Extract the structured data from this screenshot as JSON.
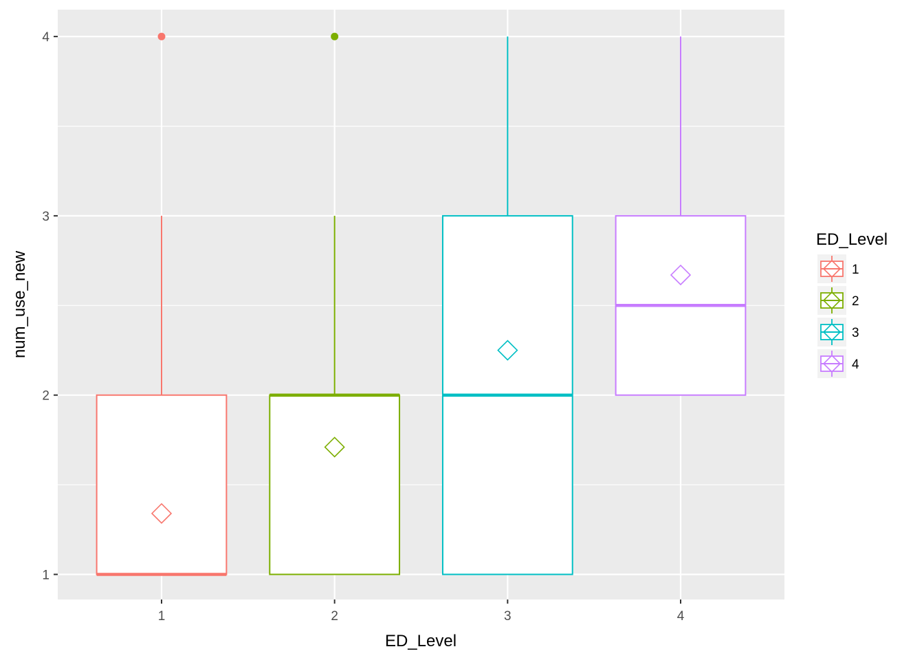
{
  "chart_data": {
    "type": "boxplot",
    "xlabel": "ED_Level",
    "ylabel": "num_use_new",
    "categories": [
      "1",
      "2",
      "3",
      "4"
    ],
    "ylim": [
      0.86,
      4.15
    ],
    "y_ticks": [
      1,
      2,
      3,
      4
    ],
    "y_minor_ticks": [
      1.5,
      2.5,
      3.5
    ],
    "grid": true,
    "legend": {
      "title": "ED_Level",
      "position": "right",
      "entries": [
        "1",
        "2",
        "3",
        "4"
      ]
    },
    "colors": [
      "#F8766D",
      "#7CAE00",
      "#00BFC4",
      "#C77CFF"
    ],
    "boxes": [
      {
        "category": "1",
        "min": 1,
        "q1": 1,
        "median": 1,
        "q3": 2,
        "max": 3,
        "mean": 1.34,
        "outliers": [
          4
        ]
      },
      {
        "category": "2",
        "min": 1,
        "q1": 1,
        "median": 2,
        "q3": 2,
        "max": 3,
        "mean": 1.71,
        "outliers": [
          4
        ]
      },
      {
        "category": "3",
        "min": 1,
        "q1": 1,
        "median": 2,
        "q3": 3,
        "max": 4,
        "mean": 2.25,
        "outliers": []
      },
      {
        "category": "4",
        "min": 2,
        "q1": 2,
        "median": 2.5,
        "q3": 3,
        "max": 4,
        "mean": 2.67,
        "outliers": []
      }
    ]
  }
}
